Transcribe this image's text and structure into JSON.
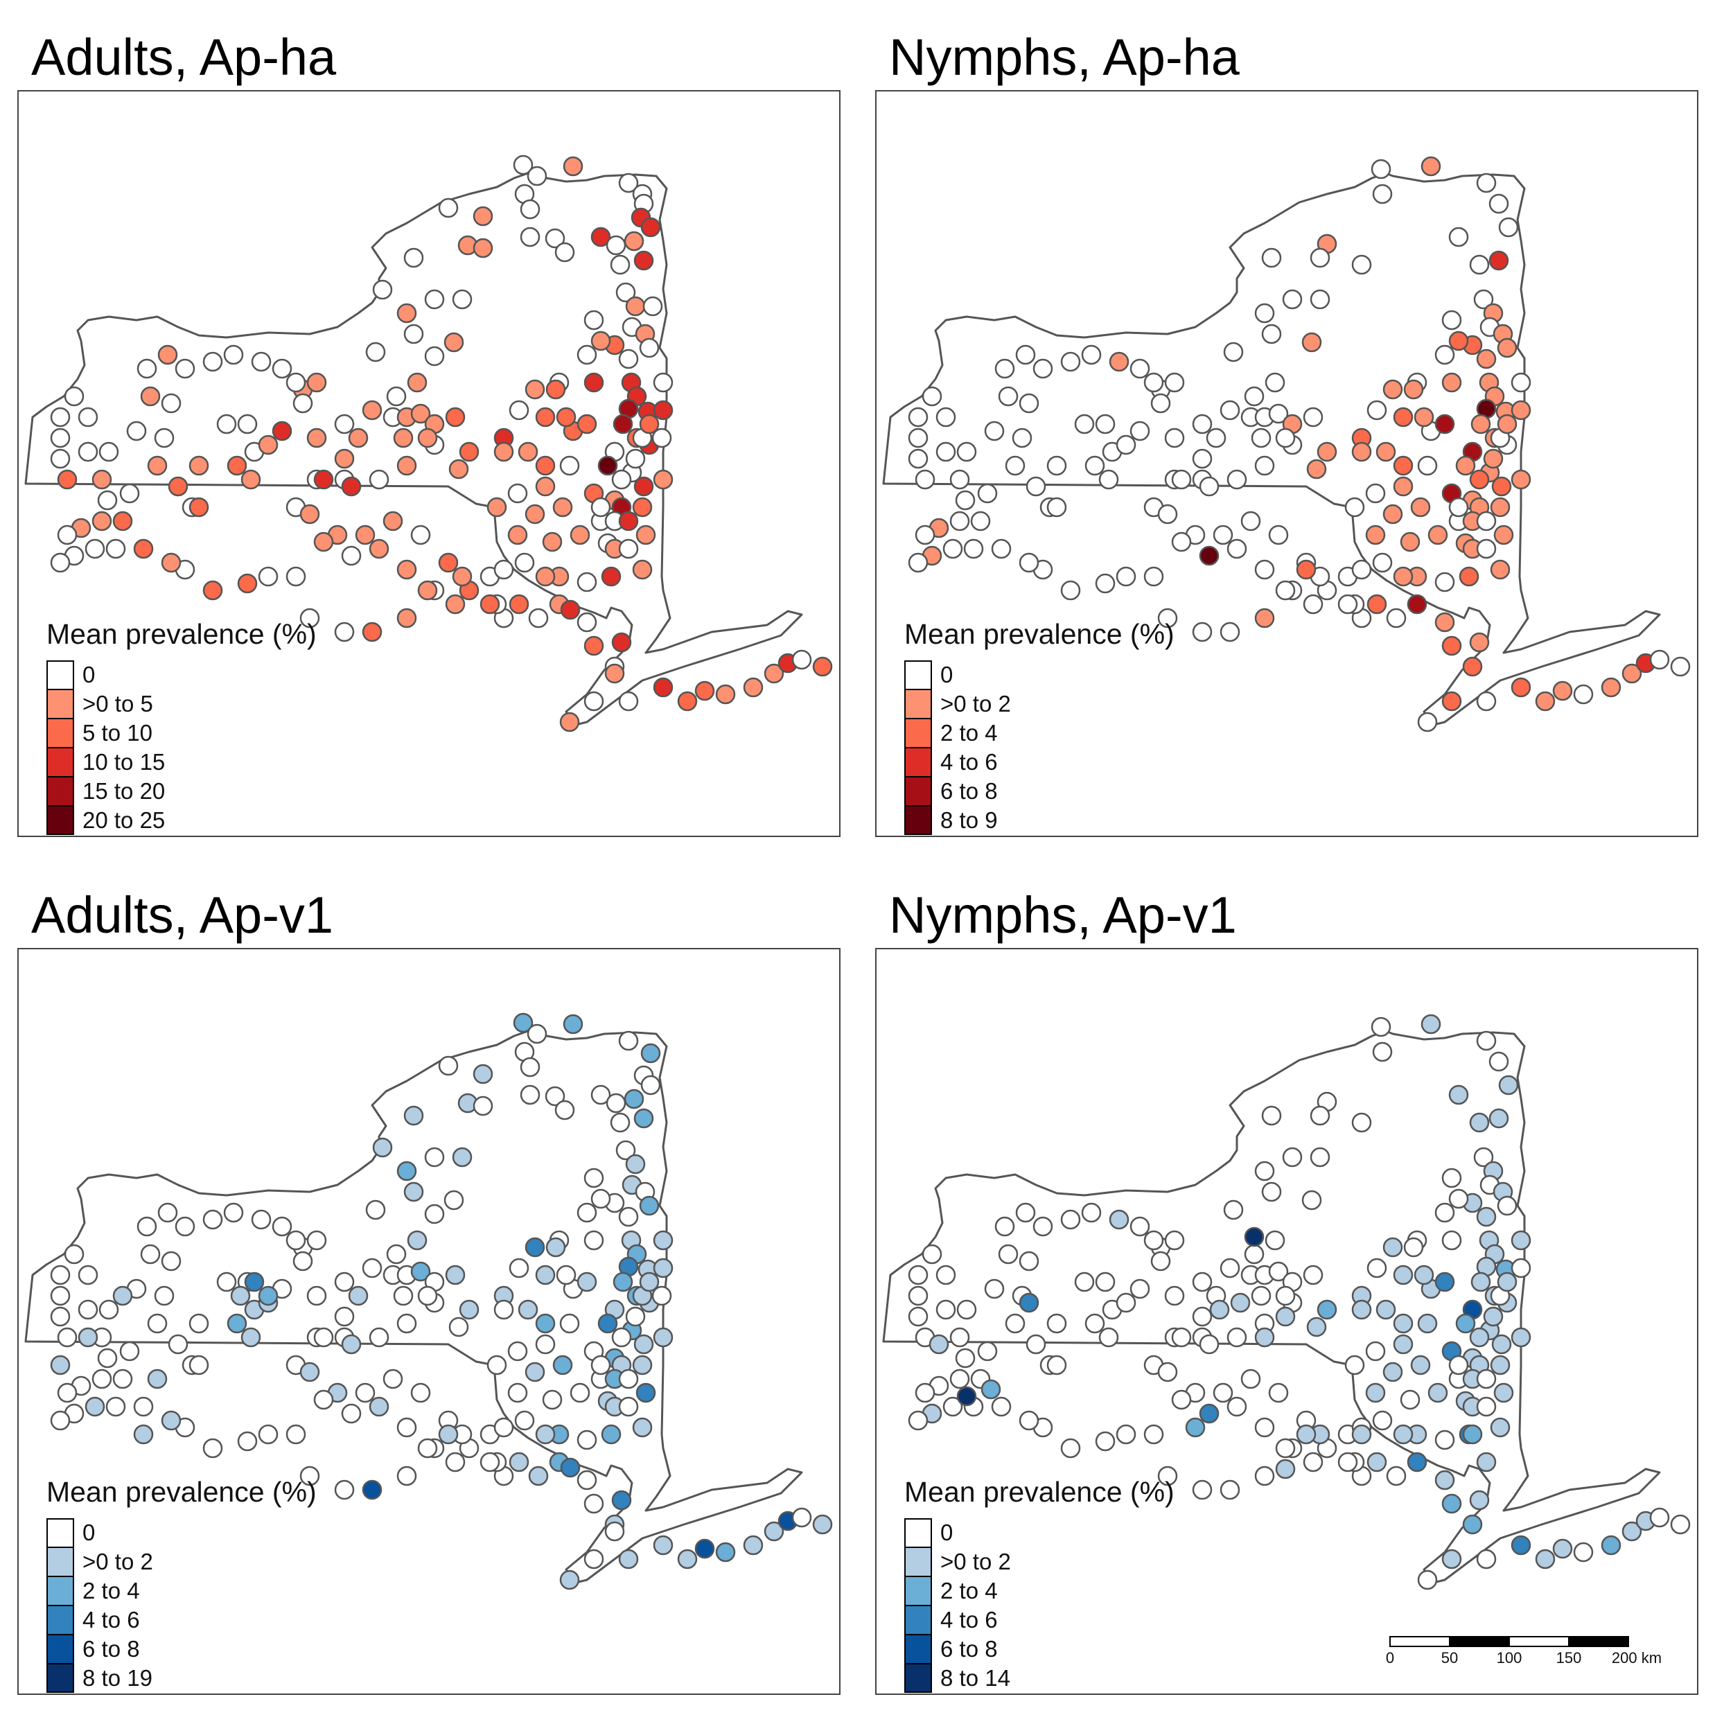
{
  "colors": {
    "state_outline": "#555555",
    "marker_outline": "#555555",
    "reds": [
      "#ffffff",
      "#fc9272",
      "#fb6a4a",
      "#de2d26",
      "#a50f15",
      "#67000d"
    ],
    "blues": [
      "#ffffff",
      "#b3cde3",
      "#6baed6",
      "#3182bd",
      "#08519c",
      "#08306b"
    ]
  },
  "panels": [
    {
      "id": "adults-ap-ha",
      "title": "Adults, Ap-ha",
      "palette": "reds",
      "legend": {
        "title": "Mean prevalence (%)",
        "items": [
          "0",
          ">0 to 5",
          "5 to 10",
          "10 to 15",
          "15 to 20",
          "20 to 25"
        ]
      }
    },
    {
      "id": "nymphs-ap-ha",
      "title": "Nymphs, Ap-ha",
      "palette": "reds",
      "legend": {
        "title": "Mean prevalence (%)",
        "items": [
          "0",
          ">0 to 2",
          "2 to 4",
          "4 to 6",
          "6 to 8",
          "8 to 9"
        ]
      }
    },
    {
      "id": "adults-ap-v1",
      "title": "Adults, Ap-v1",
      "palette": "blues",
      "legend": {
        "title": "Mean prevalence (%)",
        "items": [
          "0",
          ">0 to 2",
          "2 to 4",
          "4 to 6",
          "6 to 8",
          "8 to 19"
        ]
      }
    },
    {
      "id": "nymphs-ap-v1",
      "title": "Nymphs, Ap-v1",
      "palette": "blues",
      "legend": {
        "title": "Mean prevalence (%)",
        "items": [
          "0",
          ">0 to 2",
          "2 to 4",
          "4 to 6",
          "6 to 8",
          "8 to 14"
        ]
      }
    }
  ],
  "scale_bar": {
    "labels": [
      "0",
      "50",
      "100",
      "150",
      "200 km"
    ]
  }
}
